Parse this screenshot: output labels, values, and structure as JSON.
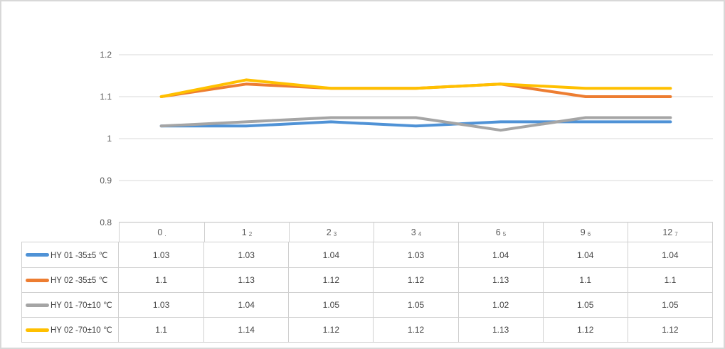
{
  "chart_data": {
    "type": "line",
    "title": "",
    "categories": [
      "0",
      "1",
      "2",
      "3",
      "6",
      "9",
      "12"
    ],
    "category_sub_labels": [
      ".",
      "2",
      "3",
      "4",
      "5",
      "6",
      "7"
    ],
    "series": [
      {
        "name": "HY 01 -35±5 ℃",
        "color": "#4F92D6",
        "values": [
          1.03,
          1.03,
          1.04,
          1.03,
          1.04,
          1.04,
          1.04
        ]
      },
      {
        "name": "HY 02 -35±5 ℃",
        "color": "#ED7D31",
        "values": [
          1.1,
          1.13,
          1.12,
          1.12,
          1.13,
          1.1,
          1.1
        ]
      },
      {
        "name": "HY 01 -70±10 ℃",
        "color": "#A5A5A5",
        "values": [
          1.03,
          1.04,
          1.05,
          1.05,
          1.02,
          1.05,
          1.05
        ]
      },
      {
        "name": "HY 02 -70±10 ℃",
        "color": "#FFC000",
        "values": [
          1.1,
          1.14,
          1.12,
          1.12,
          1.13,
          1.12,
          1.12
        ]
      }
    ],
    "y_axis": {
      "ticks": [
        "1.2",
        "1.1",
        "1",
        "0.9",
        "0.8"
      ],
      "min": 0.8,
      "max": 1.2
    },
    "xlabel": "",
    "ylabel": "",
    "ylim": [
      0.8,
      1.2
    ],
    "grid": true,
    "gridline_color": "#d9d9d9",
    "legend_position": "data-table-left",
    "has_data_table": true
  },
  "colors": {
    "frame_border": "#d8d8d8",
    "table_border": "#d0d0d0",
    "tick_text": "#595959",
    "cell_text": "#444444",
    "background": "#ffffff"
  }
}
